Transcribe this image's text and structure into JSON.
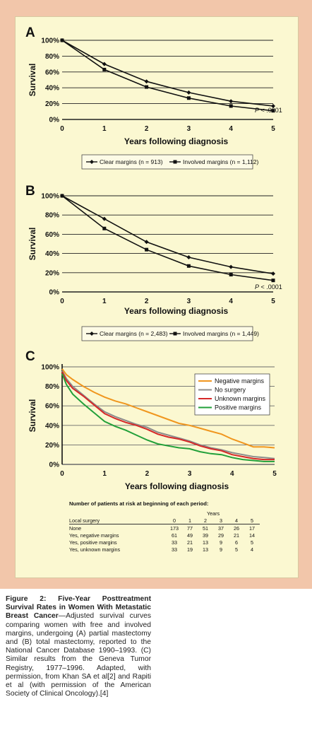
{
  "chart_data": [
    {
      "type": "line",
      "panel": "A",
      "xlabel": "Years following diagnosis",
      "ylabel": "Survival",
      "x": [
        0,
        1,
        2,
        3,
        4,
        5
      ],
      "xlim": [
        0,
        5
      ],
      "ylim": [
        0,
        100
      ],
      "yticks": [
        "0%",
        "20%",
        "40%",
        "60%",
        "80%",
        "100%"
      ],
      "xticks": [
        "0",
        "1",
        "2",
        "3",
        "4",
        "5"
      ],
      "series": [
        {
          "name": "Clear margins (n = 913)",
          "values": [
            100,
            70,
            48,
            34,
            23,
            17
          ],
          "color": "#111111",
          "marker": "diamond"
        },
        {
          "name": "Involved margins (n = 1,112)",
          "values": [
            100,
            63,
            41,
            27,
            17,
            11
          ],
          "color": "#111111",
          "marker": "square"
        }
      ],
      "annotation": {
        "p": "P",
        "rest": " < .0001"
      }
    },
    {
      "type": "line",
      "panel": "B",
      "xlabel": "Years following diagnosis",
      "ylabel": "Survival",
      "x": [
        0,
        1,
        2,
        3,
        4,
        5
      ],
      "xlim": [
        0,
        5
      ],
      "ylim": [
        0,
        100
      ],
      "yticks": [
        "0%",
        "20%",
        "40%",
        "60%",
        "80%",
        "100%"
      ],
      "xticks": [
        "0",
        "1",
        "2",
        "3",
        "4",
        "5"
      ],
      "series": [
        {
          "name": "Clear margins (n = 2,483)",
          "values": [
            100,
            76,
            52,
            36,
            26,
            19
          ],
          "color": "#111111",
          "marker": "diamond"
        },
        {
          "name": "Involved margins (n = 1,449)",
          "values": [
            100,
            66,
            44,
            27,
            18,
            12
          ],
          "color": "#111111",
          "marker": "square"
        }
      ],
      "annotation": {
        "p": "P",
        "rest": " < .0001"
      }
    },
    {
      "type": "line",
      "panel": "C",
      "xlabel": "Years following diagnosis",
      "ylabel": "Survival",
      "xlim": [
        0,
        5
      ],
      "ylim": [
        0,
        100
      ],
      "yticks": [
        "0%",
        "20%",
        "40%",
        "60%",
        "80%",
        "100%"
      ],
      "xticks": [
        "0",
        "1",
        "2",
        "3",
        "4",
        "5"
      ],
      "legend_position": "top-right",
      "series": [
        {
          "name": "Negative margins",
          "color": "#f0961e",
          "x": [
            0,
            0.1,
            0.25,
            0.5,
            0.75,
            1,
            1.25,
            1.5,
            1.75,
            2,
            2.25,
            2.5,
            2.75,
            3,
            3.25,
            3.5,
            3.75,
            4,
            4.25,
            4.5,
            4.75,
            5
          ],
          "values": [
            98,
            92,
            87,
            80,
            74,
            69,
            65,
            62,
            58,
            54,
            50,
            46,
            42,
            40,
            37,
            34,
            31,
            26,
            22,
            18,
            18,
            17
          ]
        },
        {
          "name": "No surgery",
          "color": "#8c8c8c",
          "x": [
            0,
            0.1,
            0.25,
            0.5,
            0.75,
            1,
            1.25,
            1.5,
            1.75,
            2,
            2.25,
            2.5,
            2.75,
            3,
            3.25,
            3.5,
            3.75,
            4,
            4.25,
            4.5,
            4.75,
            5
          ],
          "values": [
            96,
            88,
            80,
            71,
            62,
            54,
            49,
            45,
            41,
            38,
            33,
            30,
            27,
            24,
            20,
            17,
            15,
            12,
            10,
            8,
            7,
            6
          ]
        },
        {
          "name": "Unknown margins",
          "color": "#d62828",
          "x": [
            0,
            0.1,
            0.25,
            0.5,
            0.75,
            1,
            1.25,
            1.5,
            1.75,
            2,
            2.25,
            2.5,
            2.75,
            3,
            3.25,
            3.5,
            3.75,
            4,
            4.25,
            4.5,
            4.75,
            5
          ],
          "values": [
            95,
            86,
            78,
            70,
            61,
            52,
            47,
            43,
            40,
            36,
            31,
            28,
            26,
            23,
            19,
            16,
            14,
            10,
            8,
            6,
            5,
            5
          ]
        },
        {
          "name": "Positive margins",
          "color": "#22a03a",
          "x": [
            0,
            0.1,
            0.25,
            0.5,
            0.75,
            1,
            1.25,
            1.5,
            1.75,
            2,
            2.25,
            2.5,
            2.75,
            3,
            3.25,
            3.5,
            3.75,
            4,
            4.25,
            4.5,
            4.75,
            5
          ],
          "values": [
            93,
            82,
            72,
            62,
            53,
            44,
            39,
            35,
            30,
            25,
            21,
            19,
            17,
            16,
            13,
            11,
            10,
            7,
            5,
            4,
            3,
            3
          ]
        }
      ]
    }
  ],
  "risk_table": {
    "title": "Number of patients at risk at beginning of each period:",
    "years_label": "Years",
    "row_header": "Local surgery",
    "years": [
      "0",
      "1",
      "2",
      "3",
      "4",
      "5"
    ],
    "rows": [
      {
        "label": "None",
        "values": [
          "173",
          "77",
          "51",
          "37",
          "26",
          "17"
        ]
      },
      {
        "label": "Yes, negative margins",
        "values": [
          "61",
          "49",
          "39",
          "29",
          "21",
          "14"
        ]
      },
      {
        "label": "Yes, positive margins",
        "values": [
          "33",
          "21",
          "13",
          "9",
          "6",
          "5"
        ]
      },
      {
        "label": "Yes, unknown margins",
        "values": [
          "33",
          "19",
          "13",
          "9",
          "5",
          "4"
        ]
      }
    ]
  },
  "caption": {
    "title": "Figure 2: Five-Year Posttreatment Survival Rates in Women With Metastatic Breast Cancer",
    "text": "—Adjusted survival curves comparing women with free and involved margins, undergoing (A) partial mastectomy and (B) total mastectomy, reported to the National Cancer Database 1990–1993. (C) Similar results from the Geneva Tumor Registry, 1977–1996. Adapted, with permission, from Khan SA et al[2] and Rapiti et al (with permission of the American Society of Clinical Oncology).[4]"
  }
}
